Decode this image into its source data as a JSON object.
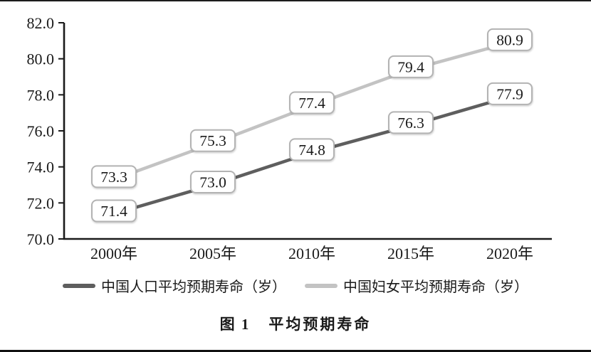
{
  "figure": {
    "label": "图 1",
    "title": "平均预期寿命"
  },
  "chart_data": {
    "type": "line",
    "categories": [
      "2000年",
      "2005年",
      "2010年",
      "2015年",
      "2020年"
    ],
    "series": [
      {
        "name": "中国人口平均预期寿命（岁）",
        "values": [
          71.4,
          73.0,
          74.8,
          76.3,
          77.9
        ],
        "color": "#5e5e5e"
      },
      {
        "name": "中国妇女平均预期寿命（岁）",
        "values": [
          73.3,
          75.3,
          77.4,
          79.4,
          80.9
        ],
        "color": "#c3c3c3"
      }
    ],
    "title": "图 1　平均预期寿命",
    "xlabel": "",
    "ylabel": "",
    "ylim": [
      70.0,
      82.0
    ],
    "ytick_step": 2.0,
    "ytick_labels": [
      "70.0",
      "72.0",
      "74.0",
      "76.0",
      "78.0",
      "80.0",
      "82.0"
    ],
    "grid": false,
    "legend_position": "bottom",
    "data_labels": true
  },
  "colors": {
    "axis": "#1a1a1a",
    "text": "#1a1a1a",
    "label_box_fill": "#ffffff",
    "label_box_border": "#b3b3b3",
    "series_dark": "#5e5e5e",
    "series_light": "#c3c3c3",
    "rule": "#111111"
  }
}
